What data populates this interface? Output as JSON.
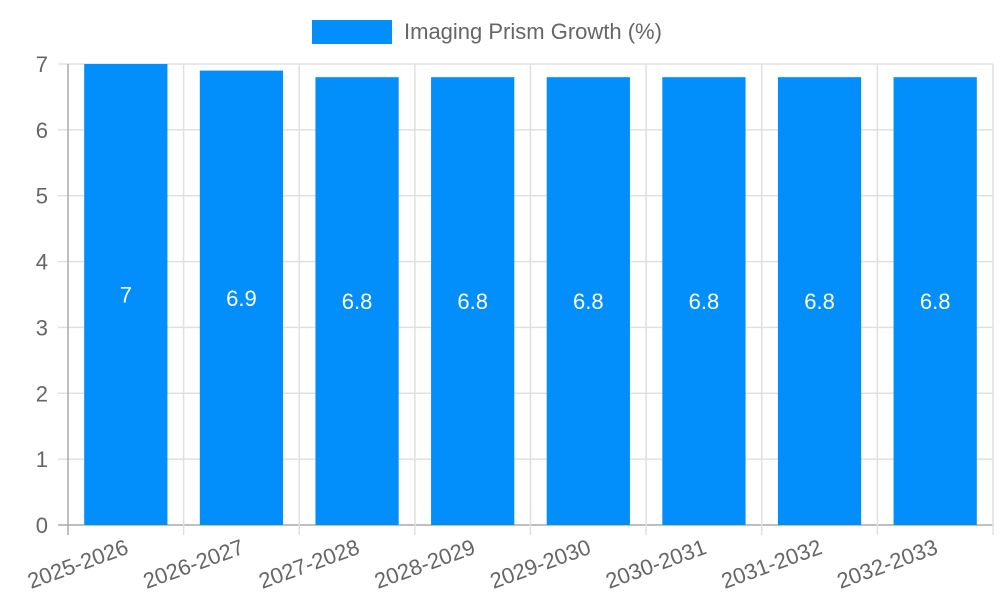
{
  "chart_data": {
    "type": "bar",
    "title": "",
    "xlabel": "",
    "ylabel": "",
    "categories": [
      "2025-2026",
      "2026-2027",
      "2027-2028",
      "2028-2029",
      "2029-2030",
      "2030-2031",
      "2031-2032",
      "2032-2033"
    ],
    "series": [
      {
        "name": "Imaging Prism Growth (%)",
        "values": [
          7,
          6.9,
          6.8,
          6.8,
          6.8,
          6.8,
          6.8,
          6.8
        ],
        "color": "#038ffb"
      }
    ],
    "data_labels": [
      "7",
      "6.9",
      "6.8",
      "6.8",
      "6.8",
      "6.8",
      "6.8",
      "6.8"
    ],
    "ylim": [
      0,
      7
    ],
    "yticks": [
      0,
      1,
      2,
      3,
      4,
      5,
      6,
      7
    ],
    "grid": true,
    "legend_position": "top"
  },
  "legend": {
    "label": "Imaging Prism Growth (%)"
  }
}
